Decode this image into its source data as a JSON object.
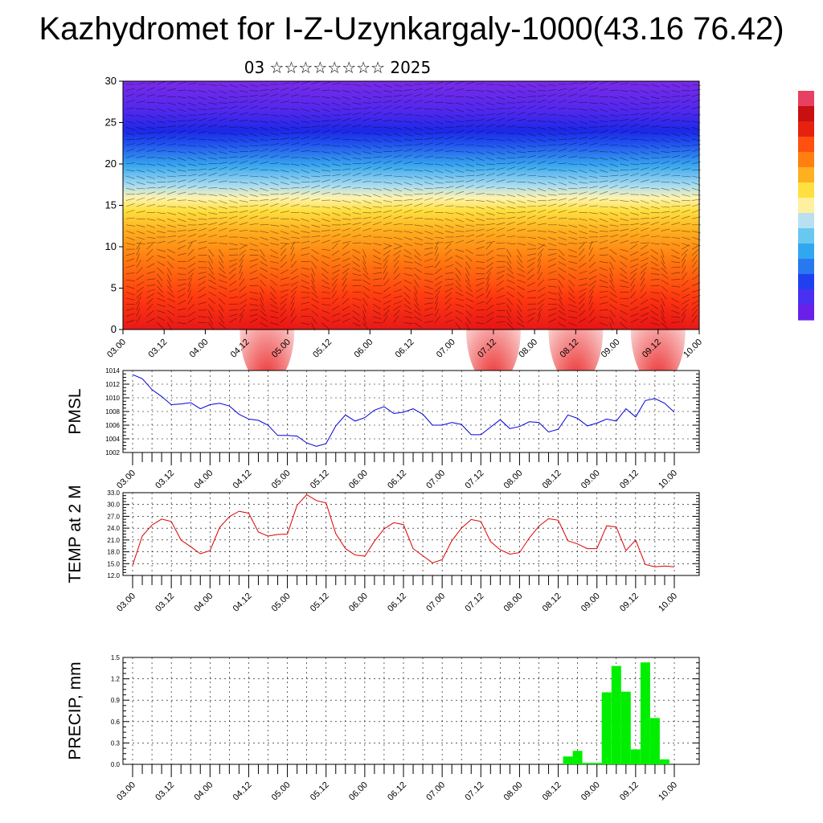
{
  "header": {
    "title": "Kazhydromet for I-Z-Uzynkargaly-1000(43.16 76.42)",
    "subtitle": "03 ☆☆☆☆☆☆☆☆ 2025"
  },
  "colors": {
    "pmsl_line": "#0000dd",
    "temp_line": "#dd0000",
    "precip_bar": "#00ee00",
    "colorbar": [
      "#6a20e8",
      "#4a30f0",
      "#2040f0",
      "#2878f0",
      "#30a8f0",
      "#68c8f0",
      "#b8e0f0",
      "#fff0a0",
      "#ffe040",
      "#ffb020",
      "#ff8010",
      "#ff5010",
      "#e82010",
      "#c81010",
      "#e84060"
    ]
  },
  "chart_data": [
    {
      "type": "heatmap",
      "name": "vertical-profile",
      "ylim": [
        0,
        30
      ],
      "yticks": [
        "0",
        "5",
        "10",
        "15",
        "20",
        "25",
        "30"
      ],
      "xticks": [
        "03.00",
        "03.12",
        "04.00",
        "04.12",
        "05.00",
        "05.12",
        "06.00",
        "06.12",
        "07.00",
        "07.12",
        "08.00",
        "08.12",
        "09.00",
        "09.12",
        "10.00"
      ],
      "grid": false
    },
    {
      "type": "line",
      "ylabel": "PMSL",
      "ylim": [
        1002,
        1014
      ],
      "yticks": [
        "1002",
        "1004",
        "1006",
        "1008",
        "1010",
        "1012",
        "1014"
      ],
      "xticks": [
        "03.00",
        "03.12",
        "04.00",
        "04.12",
        "05.00",
        "05.12",
        "06.00",
        "06.12",
        "07.00",
        "07.12",
        "08.00",
        "08.12",
        "09.00",
        "09.12",
        "10.00"
      ],
      "grid": true,
      "x": [
        0,
        3,
        6,
        9,
        12,
        15,
        18,
        21,
        24,
        27,
        30,
        33,
        36,
        39,
        42,
        45,
        48,
        51,
        54,
        57,
        60,
        63,
        66,
        69,
        72,
        75,
        78,
        81,
        84,
        87,
        90,
        93,
        96,
        99,
        102,
        105,
        108,
        111,
        114,
        117,
        120,
        123,
        126,
        129,
        132,
        135,
        138,
        141,
        144,
        147,
        150,
        153,
        156,
        159,
        162,
        165,
        168
      ],
      "values": [
        1013.4,
        1012.8,
        1011.2,
        1010.2,
        1009.0,
        1009.1,
        1009.3,
        1008.4,
        1009.0,
        1009.2,
        1008.8,
        1007.6,
        1006.9,
        1006.7,
        1006.0,
        1004.5,
        1004.5,
        1004.4,
        1003.4,
        1002.9,
        1003.3,
        1005.9,
        1007.5,
        1006.6,
        1007.1,
        1008.2,
        1008.7,
        1007.7,
        1007.9,
        1008.4,
        1007.6,
        1006.0,
        1006.0,
        1006.4,
        1006.1,
        1004.6,
        1004.6,
        1005.7,
        1006.8,
        1005.5,
        1005.8,
        1006.5,
        1006.4,
        1005.0,
        1005.4,
        1007.5,
        1007.0,
        1005.9,
        1006.3,
        1006.9,
        1006.6,
        1008.4,
        1007.2,
        1009.6,
        1009.9,
        1009.2,
        1007.9
      ]
    },
    {
      "type": "line",
      "ylabel": "TEMP at 2 M",
      "ylim": [
        12,
        33
      ],
      "yticks": [
        "12.0",
        "15.0",
        "18.0",
        "21.0",
        "24.0",
        "27.0",
        "30.0",
        "33.0"
      ],
      "xticks": [
        "03.00",
        "03.12",
        "04.00",
        "04.12",
        "05.00",
        "05.12",
        "06.00",
        "06.12",
        "07.00",
        "07.12",
        "08.00",
        "08.12",
        "09.00",
        "09.12",
        "10.00"
      ],
      "grid": true,
      "x": [
        0,
        3,
        6,
        9,
        12,
        15,
        18,
        21,
        24,
        27,
        30,
        33,
        36,
        39,
        42,
        45,
        48,
        51,
        54,
        57,
        60,
        63,
        66,
        69,
        72,
        75,
        78,
        81,
        84,
        87,
        90,
        93,
        96,
        99,
        102,
        105,
        108,
        111,
        114,
        117,
        120,
        123,
        126,
        129,
        132,
        135,
        138,
        141,
        144,
        147,
        150,
        153,
        156,
        159,
        162,
        165,
        168
      ],
      "values": [
        14.6,
        22.0,
        24.8,
        26.3,
        25.7,
        21.0,
        19.3,
        17.5,
        18.3,
        24.2,
        26.9,
        28.3,
        27.8,
        23.0,
        22.0,
        22.4,
        22.5,
        29.8,
        32.5,
        31.0,
        30.4,
        22.6,
        18.8,
        17.2,
        16.9,
        20.7,
        23.8,
        25.4,
        24.9,
        18.8,
        17.0,
        15.2,
        16.0,
        20.8,
        24.0,
        26.2,
        25.7,
        20.6,
        18.5,
        17.4,
        17.8,
        21.5,
        24.5,
        26.4,
        26.0,
        20.8,
        20.0,
        18.8,
        18.8,
        24.6,
        24.3,
        18.3,
        21.0,
        14.8,
        14.2,
        14.4,
        14.2
      ]
    },
    {
      "type": "bar",
      "ylabel": "PRECIP, mm",
      "ylim": [
        0,
        1.5
      ],
      "yticks": [
        "0.0",
        "0.3",
        "0.6",
        "0.9",
        "1.2",
        "1.5"
      ],
      "xticks": [
        "03.00",
        "03.12",
        "04.00",
        "04.12",
        "05.00",
        "05.12",
        "06.00",
        "06.12",
        "07.00",
        "07.12",
        "08.00",
        "08.12",
        "09.00",
        "09.12",
        "10.00"
      ],
      "grid": true,
      "bar_width_hours": 3,
      "x": [
        135,
        138,
        141,
        144,
        147,
        150,
        153,
        156,
        159,
        162,
        165
      ],
      "values": [
        0.11,
        0.19,
        0.02,
        0.02,
        1.01,
        1.38,
        1.02,
        0.21,
        1.43,
        0.65,
        0.07
      ]
    }
  ]
}
